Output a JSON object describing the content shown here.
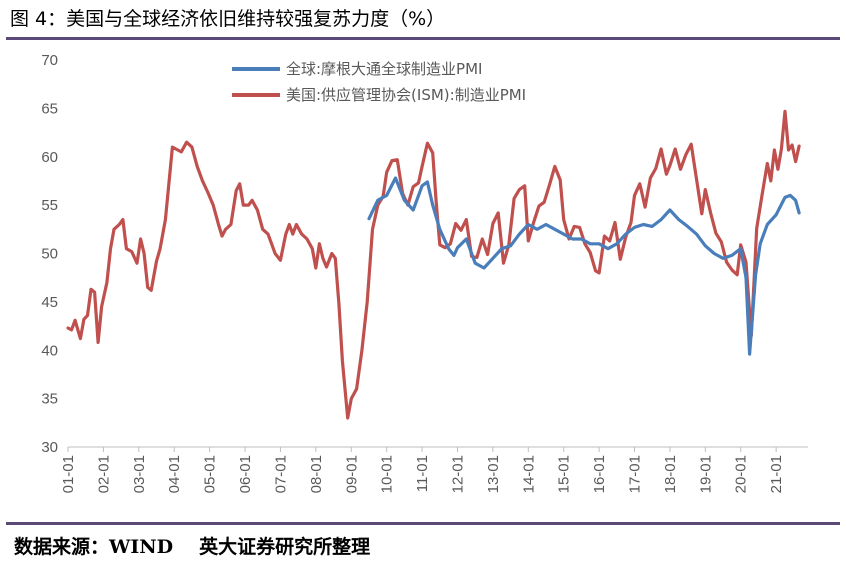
{
  "title": "图 4：美国与全球经济依旧维持较强复苏力度（%）",
  "source": {
    "label": "数据来源：WIND",
    "org": "英大证券研究所整理"
  },
  "colors": {
    "global": "#4a7ebb",
    "us": "#c0504d",
    "rule": "#5b4a78",
    "text": "#595959"
  },
  "chart_data": {
    "type": "line",
    "ylim": [
      30,
      70
    ],
    "yticks": [
      30,
      35,
      40,
      45,
      50,
      55,
      60,
      65,
      70
    ],
    "xticks": [
      "01-01",
      "02-01",
      "03-01",
      "04-01",
      "05-01",
      "06-01",
      "07-01",
      "08-01",
      "09-01",
      "10-01",
      "11-01",
      "12-01",
      "13-01",
      "14-01",
      "15-01",
      "16-01",
      "17-01",
      "18-01",
      "19-01",
      "20-01",
      "21-01"
    ],
    "legend_position": "top-center",
    "series": [
      {
        "name": "全球:摩根大通全球制造业PMI",
        "color": "#4a7ebb",
        "points": [
          [
            2009.5,
            53.6
          ],
          [
            2009.75,
            55.5
          ],
          [
            2010.0,
            56.0
          ],
          [
            2010.25,
            57.8
          ],
          [
            2010.5,
            55.5
          ],
          [
            2010.75,
            54.5
          ],
          [
            2011.0,
            57.0
          ],
          [
            2011.15,
            57.4
          ],
          [
            2011.3,
            55.0
          ],
          [
            2011.5,
            52.5
          ],
          [
            2011.75,
            50.5
          ],
          [
            2011.9,
            49.8
          ],
          [
            2012.0,
            50.6
          ],
          [
            2012.25,
            51.5
          ],
          [
            2012.5,
            49.0
          ],
          [
            2012.75,
            48.5
          ],
          [
            2013.0,
            49.5
          ],
          [
            2013.25,
            50.5
          ],
          [
            2013.5,
            50.8
          ],
          [
            2013.75,
            52.0
          ],
          [
            2014.0,
            53.0
          ],
          [
            2014.25,
            52.5
          ],
          [
            2014.5,
            53.0
          ],
          [
            2014.75,
            52.5
          ],
          [
            2015.0,
            52.0
          ],
          [
            2015.25,
            51.5
          ],
          [
            2015.5,
            51.5
          ],
          [
            2015.75,
            51.0
          ],
          [
            2016.0,
            51.0
          ],
          [
            2016.25,
            50.5
          ],
          [
            2016.5,
            51.0
          ],
          [
            2016.75,
            52.0
          ],
          [
            2017.0,
            52.7
          ],
          [
            2017.25,
            53.0
          ],
          [
            2017.5,
            52.8
          ],
          [
            2017.75,
            53.5
          ],
          [
            2018.0,
            54.5
          ],
          [
            2018.25,
            53.5
          ],
          [
            2018.5,
            52.8
          ],
          [
            2018.75,
            52.0
          ],
          [
            2019.0,
            50.8
          ],
          [
            2019.25,
            50.0
          ],
          [
            2019.5,
            49.5
          ],
          [
            2019.75,
            49.8
          ],
          [
            2020.0,
            50.5
          ],
          [
            2020.15,
            47.5
          ],
          [
            2020.25,
            39.6
          ],
          [
            2020.42,
            47.8
          ],
          [
            2020.55,
            51.0
          ],
          [
            2020.75,
            53.0
          ],
          [
            2021.0,
            54.0
          ],
          [
            2021.25,
            55.8
          ],
          [
            2021.4,
            56.0
          ],
          [
            2021.55,
            55.5
          ],
          [
            2021.65,
            54.2
          ]
        ]
      },
      {
        "name": "美国:供应管理协会(ISM):制造业PMI",
        "color": "#c0504d",
        "points": [
          [
            2001.0,
            42.3
          ],
          [
            2001.1,
            42.1
          ],
          [
            2001.2,
            43.1
          ],
          [
            2001.35,
            41.2
          ],
          [
            2001.45,
            43.2
          ],
          [
            2001.55,
            43.6
          ],
          [
            2001.65,
            46.3
          ],
          [
            2001.75,
            46.0
          ],
          [
            2001.85,
            40.8
          ],
          [
            2001.95,
            44.5
          ],
          [
            2002.1,
            47.0
          ],
          [
            2002.2,
            50.5
          ],
          [
            2002.3,
            52.5
          ],
          [
            2002.45,
            53.0
          ],
          [
            2002.55,
            53.5
          ],
          [
            2002.65,
            50.5
          ],
          [
            2002.8,
            50.2
          ],
          [
            2002.95,
            49.0
          ],
          [
            2003.05,
            51.5
          ],
          [
            2003.15,
            50.0
          ],
          [
            2003.25,
            46.5
          ],
          [
            2003.35,
            46.2
          ],
          [
            2003.5,
            49.2
          ],
          [
            2003.6,
            50.5
          ],
          [
            2003.75,
            53.5
          ],
          [
            2003.95,
            61.0
          ],
          [
            2004.2,
            60.5
          ],
          [
            2004.35,
            61.5
          ],
          [
            2004.5,
            61.0
          ],
          [
            2004.65,
            59.0
          ],
          [
            2004.8,
            57.5
          ],
          [
            2004.95,
            56.3
          ],
          [
            2005.1,
            55.0
          ],
          [
            2005.25,
            53.0
          ],
          [
            2005.35,
            51.8
          ],
          [
            2005.45,
            52.5
          ],
          [
            2005.6,
            53.0
          ],
          [
            2005.75,
            56.5
          ],
          [
            2005.85,
            57.2
          ],
          [
            2005.95,
            55.0
          ],
          [
            2006.1,
            55.0
          ],
          [
            2006.2,
            55.5
          ],
          [
            2006.35,
            54.5
          ],
          [
            2006.5,
            52.5
          ],
          [
            2006.65,
            52.0
          ],
          [
            2006.75,
            51.0
          ],
          [
            2006.85,
            50.0
          ],
          [
            2007.0,
            49.3
          ],
          [
            2007.15,
            52.0
          ],
          [
            2007.25,
            53.0
          ],
          [
            2007.35,
            52.0
          ],
          [
            2007.45,
            53.0
          ],
          [
            2007.6,
            52.0
          ],
          [
            2007.75,
            51.5
          ],
          [
            2007.9,
            50.5
          ],
          [
            2008.0,
            48.5
          ],
          [
            2008.1,
            51.0
          ],
          [
            2008.2,
            49.5
          ],
          [
            2008.3,
            48.6
          ],
          [
            2008.45,
            50.0
          ],
          [
            2008.55,
            49.5
          ],
          [
            2008.65,
            44.8
          ],
          [
            2008.75,
            38.9
          ],
          [
            2008.9,
            33.0
          ],
          [
            2009.0,
            35.0
          ],
          [
            2009.15,
            36.0
          ],
          [
            2009.3,
            40.0
          ],
          [
            2009.45,
            45.0
          ],
          [
            2009.6,
            52.5
          ],
          [
            2009.75,
            55.0
          ],
          [
            2009.9,
            55.9
          ],
          [
            2010.0,
            58.4
          ],
          [
            2010.15,
            59.6
          ],
          [
            2010.3,
            59.7
          ],
          [
            2010.45,
            56.2
          ],
          [
            2010.6,
            55.0
          ],
          [
            2010.75,
            56.9
          ],
          [
            2010.9,
            57.3
          ],
          [
            2011.0,
            59.0
          ],
          [
            2011.15,
            61.4
          ],
          [
            2011.3,
            60.4
          ],
          [
            2011.4,
            55.3
          ],
          [
            2011.5,
            50.9
          ],
          [
            2011.65,
            50.6
          ],
          [
            2011.8,
            51.0
          ],
          [
            2011.95,
            53.1
          ],
          [
            2012.1,
            52.4
          ],
          [
            2012.25,
            53.5
          ],
          [
            2012.4,
            49.7
          ],
          [
            2012.55,
            49.6
          ],
          [
            2012.7,
            51.5
          ],
          [
            2012.85,
            49.9
          ],
          [
            2013.0,
            53.1
          ],
          [
            2013.15,
            54.2
          ],
          [
            2013.3,
            49.0
          ],
          [
            2013.45,
            50.9
          ],
          [
            2013.6,
            55.7
          ],
          [
            2013.75,
            56.6
          ],
          [
            2013.9,
            57.0
          ],
          [
            2014.0,
            51.3
          ],
          [
            2014.15,
            53.2
          ],
          [
            2014.3,
            54.9
          ],
          [
            2014.45,
            55.3
          ],
          [
            2014.6,
            57.1
          ],
          [
            2014.75,
            59.0
          ],
          [
            2014.9,
            57.6
          ],
          [
            2015.0,
            53.5
          ],
          [
            2015.15,
            51.5
          ],
          [
            2015.3,
            52.8
          ],
          [
            2015.45,
            52.7
          ],
          [
            2015.6,
            51.0
          ],
          [
            2015.75,
            50.1
          ],
          [
            2015.9,
            48.2
          ],
          [
            2016.0,
            48.0
          ],
          [
            2016.15,
            51.8
          ],
          [
            2016.3,
            51.3
          ],
          [
            2016.45,
            53.2
          ],
          [
            2016.6,
            49.4
          ],
          [
            2016.75,
            51.7
          ],
          [
            2016.9,
            53.2
          ],
          [
            2017.0,
            56.0
          ],
          [
            2017.15,
            57.2
          ],
          [
            2017.3,
            54.8
          ],
          [
            2017.45,
            57.8
          ],
          [
            2017.6,
            58.8
          ],
          [
            2017.75,
            60.8
          ],
          [
            2017.9,
            58.2
          ],
          [
            2018.0,
            59.1
          ],
          [
            2018.15,
            60.8
          ],
          [
            2018.3,
            58.7
          ],
          [
            2018.45,
            60.2
          ],
          [
            2018.6,
            61.3
          ],
          [
            2018.75,
            57.7
          ],
          [
            2018.9,
            54.1
          ],
          [
            2019.0,
            56.6
          ],
          [
            2019.15,
            54.2
          ],
          [
            2019.3,
            52.1
          ],
          [
            2019.45,
            51.2
          ],
          [
            2019.6,
            49.1
          ],
          [
            2019.75,
            48.3
          ],
          [
            2019.9,
            47.8
          ],
          [
            2020.0,
            50.9
          ],
          [
            2020.15,
            49.1
          ],
          [
            2020.3,
            41.5
          ],
          [
            2020.45,
            52.6
          ],
          [
            2020.6,
            56.0
          ],
          [
            2020.75,
            59.3
          ],
          [
            2020.85,
            57.5
          ],
          [
            2020.95,
            60.7
          ],
          [
            2021.05,
            58.7
          ],
          [
            2021.15,
            60.8
          ],
          [
            2021.25,
            64.7
          ],
          [
            2021.35,
            60.7
          ],
          [
            2021.45,
            61.2
          ],
          [
            2021.55,
            59.5
          ],
          [
            2021.65,
            61.1
          ]
        ]
      }
    ]
  }
}
